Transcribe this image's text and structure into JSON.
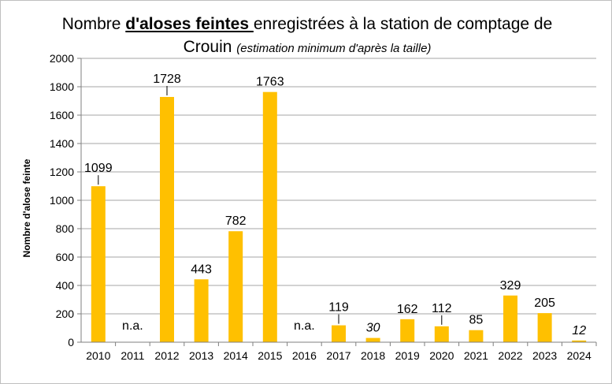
{
  "chart_data": {
    "type": "bar",
    "title": {
      "part1": "Nombre ",
      "bold": "d'aloses feintes ",
      "part2": "enregistrées à la station de comptage de Crouin",
      "subtitle": "(estimation minimum d'après la taille)"
    },
    "xlabel": "",
    "ylabel": "Nombre d'alose feinte",
    "ylim": [
      0,
      2000
    ],
    "yticks": [
      0,
      200,
      400,
      600,
      800,
      1000,
      1200,
      1400,
      1600,
      1800,
      2000
    ],
    "grid": true,
    "bar_color": "#ffc000",
    "categories": [
      "2010",
      "2011",
      "2012",
      "2013",
      "2014",
      "2015",
      "2016",
      "2017",
      "2018",
      "2019",
      "2020",
      "2021",
      "2022",
      "2023",
      "2024"
    ],
    "values": [
      1099,
      null,
      1728,
      443,
      782,
      1763,
      null,
      119,
      30,
      162,
      112,
      85,
      329,
      205,
      12
    ],
    "labels": [
      "1099",
      "n.a.",
      "1728",
      "443",
      "782",
      "1763",
      "n.a.",
      "119",
      "30",
      "162",
      "112",
      "85",
      "329",
      "205",
      "12"
    ],
    "italic_labels": [
      "2018",
      "2024"
    ],
    "leader_lines": [
      "2010",
      "2012",
      "2017",
      "2020"
    ]
  }
}
